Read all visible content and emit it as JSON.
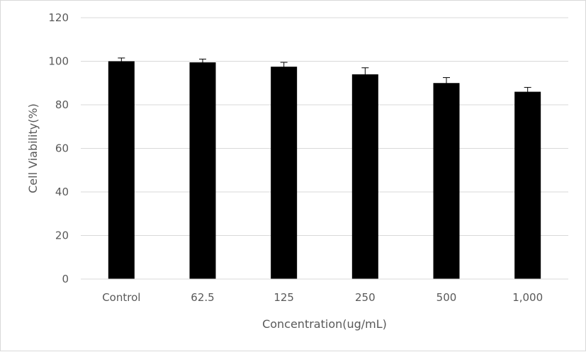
{
  "chart_data": {
    "type": "bar",
    "title": "",
    "xlabel": "Concentration(ug/mL)",
    "ylabel": "Cell Viability(%)",
    "categories": [
      "Control",
      "62.5",
      "125",
      "250",
      "500",
      "1,000"
    ],
    "values": [
      100,
      99.5,
      97.5,
      94,
      90,
      86
    ],
    "error": [
      1.5,
      1.5,
      2,
      3,
      2.5,
      2
    ],
    "ylim": [
      0,
      120
    ],
    "yticks": [
      "0",
      "20",
      "40",
      "60",
      "80",
      "100",
      "120"
    ],
    "grid": true,
    "legend": "none",
    "colors": {
      "bar": "#000000",
      "grid": "#d9d9d9",
      "text": "#595959"
    }
  }
}
